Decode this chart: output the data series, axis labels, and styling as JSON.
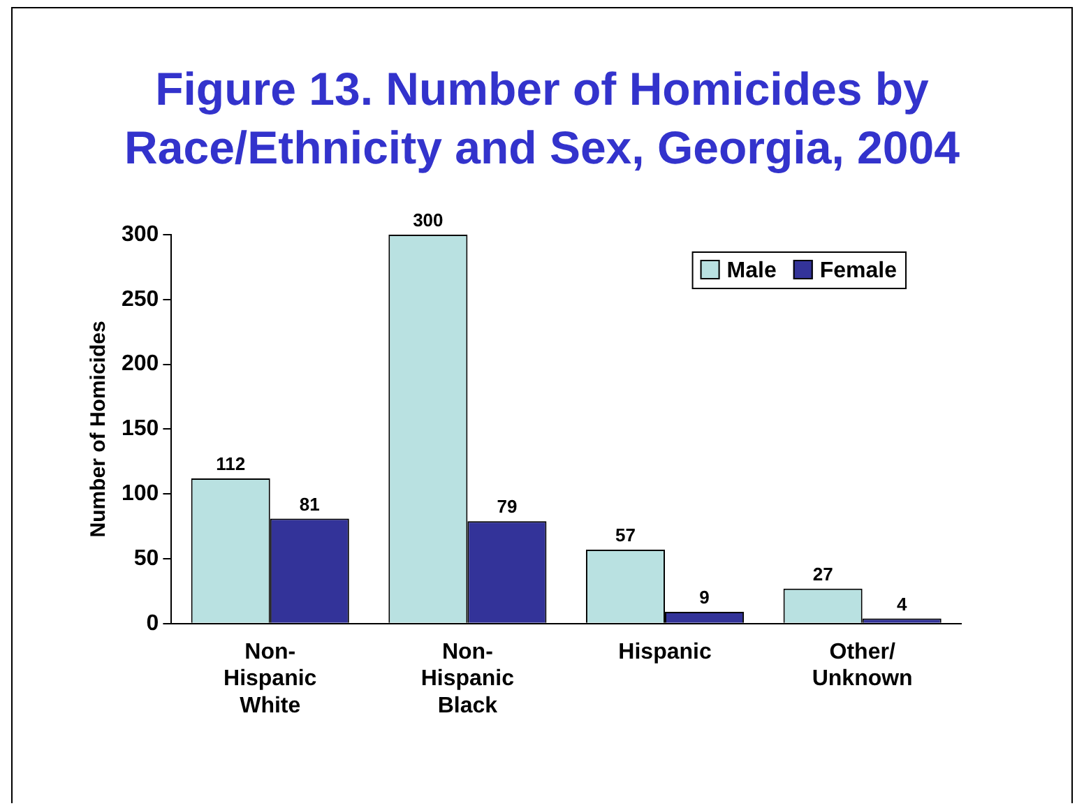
{
  "chart_data": {
    "type": "bar",
    "title": "Figure 13. Number of Homicides by Race/Ethnicity and Sex, Georgia, 2004",
    "ylabel": "Number of Homicides",
    "categories": [
      "Non-Hispanic White",
      "Non-Hispanic Black",
      "Hispanic",
      "Other/Unknown"
    ],
    "series": [
      {
        "name": "Male",
        "color": "#b9e1e1",
        "values": [
          112,
          300,
          57,
          27
        ]
      },
      {
        "name": "Female",
        "color": "#333399",
        "values": [
          81,
          79,
          9,
          4
        ]
      }
    ],
    "ylim": [
      0,
      300
    ],
    "yticks": [
      0,
      50,
      100,
      150,
      200,
      250,
      300
    ],
    "data_labels": true,
    "legend": "top right"
  }
}
